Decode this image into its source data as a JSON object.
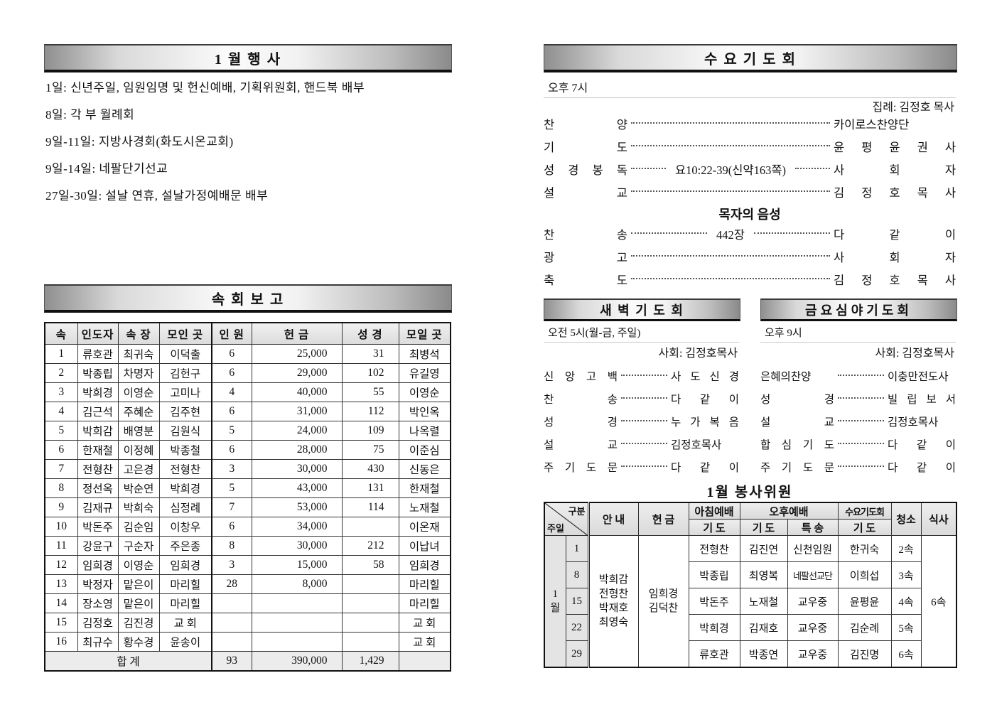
{
  "left": {
    "events": {
      "title": "1 월 행 사",
      "items": [
        "1일: 신년주일, 임원임명 및 헌신예배, 기획위원회, 핸드북 배부",
        "8일: 각 부 월례회",
        "9일-11일: 지방사경회(화도시온교회)",
        "9일-14일: 네팔단기선교",
        "27일-30일: 설날 연휴, 설날가정예배문 배부"
      ]
    },
    "sokhoe": {
      "title": "속 회 보 고",
      "headers": [
        "속",
        "인도자",
        "속 장",
        "모인 곳",
        "인 원",
        "헌 금",
        "성 경",
        "모일 곳"
      ],
      "rows": [
        [
          "1",
          "류호관",
          "최귀숙",
          "이덕출",
          "6",
          "25,000",
          "31",
          "최병석"
        ],
        [
          "2",
          "박종립",
          "차명자",
          "김헌구",
          "6",
          "29,000",
          "102",
          "유길영"
        ],
        [
          "3",
          "박희경",
          "이영순",
          "고미나",
          "4",
          "40,000",
          "55",
          "이영순"
        ],
        [
          "4",
          "김근석",
          "주혜순",
          "김주현",
          "6",
          "31,000",
          "112",
          "박인옥"
        ],
        [
          "5",
          "박희감",
          "배영분",
          "김원식",
          "5",
          "24,000",
          "109",
          "나옥렬"
        ],
        [
          "6",
          "한재철",
          "이정혜",
          "박종철",
          "6",
          "28,000",
          "75",
          "이준심"
        ],
        [
          "7",
          "전형찬",
          "고은경",
          "전형찬",
          "3",
          "30,000",
          "430",
          "신동은"
        ],
        [
          "8",
          "정선옥",
          "박순연",
          "박희경",
          "5",
          "43,000",
          "131",
          "한재철"
        ],
        [
          "9",
          "김재규",
          "박희숙",
          "심정례",
          "7",
          "53,000",
          "114",
          "노재철"
        ],
        [
          "10",
          "박돈주",
          "김순임",
          "이창우",
          "6",
          "34,000",
          "",
          "이온재"
        ],
        [
          "11",
          "강윤구",
          "구순자",
          "주은종",
          "8",
          "30,000",
          "212",
          "이납녀"
        ],
        [
          "12",
          "임희경",
          "이영순",
          "임희경",
          "3",
          "15,000",
          "58",
          "임희경"
        ],
        [
          "13",
          "박정자",
          "맡은이",
          "마리힐",
          "28",
          "8,000",
          "",
          "마리힐"
        ],
        [
          "14",
          "장소영",
          "맡은이",
          "마리힐",
          "",
          "",
          "",
          "마리힐"
        ],
        [
          "15",
          "김정호",
          "김진경",
          "교  회",
          "",
          "",
          "",
          "교  회"
        ],
        [
          "16",
          "최규수",
          "황수경",
          "윤송이",
          "",
          "",
          "",
          "교  회"
        ]
      ],
      "total": {
        "label": "합    계",
        "members": "93",
        "offering": "390,000",
        "bible": "1,429",
        "place": ""
      }
    }
  },
  "right": {
    "wednesday": {
      "title": "수 요 기 도 회",
      "time": "오후 7시",
      "officiant": "집례: 김정호 목사",
      "rows": [
        {
          "label": "찬 양",
          "value": "카이로스찬양단"
        },
        {
          "label": "기 도",
          "value": "윤 평 윤 권 사"
        },
        {
          "label": "성 경 봉 독",
          "middle": "요10:22-39(신약163쪽)",
          "value": "사 회 자"
        },
        {
          "label": "설 교",
          "value": "김 정 호 목 사"
        }
      ],
      "subtitle": "목자의 음성",
      "rows2": [
        {
          "label": "찬 송",
          "middle": "442장",
          "value": "다 같 이"
        },
        {
          "label": "광 고",
          "value": "사 회 자"
        },
        {
          "label": "축 도",
          "value": "김 정 호 목 사"
        }
      ]
    },
    "dawn": {
      "title": "새 벽 기 도 회",
      "time": "오전 5시(월-금, 주일)",
      "moderator": "사회: 김정호목사",
      "rows": [
        {
          "label": "신 앙 고 백",
          "value": "사 도 신 경"
        },
        {
          "label": "찬 송",
          "value": "다 같 이"
        },
        {
          "label": "성 경",
          "value": "누 가 복 음"
        },
        {
          "label": "설 교",
          "value": "김정호목사"
        },
        {
          "label": "주 기 도 문",
          "value": "다 같 이"
        }
      ]
    },
    "friday": {
      "title": "금요심야기도회",
      "time": "오후 9시",
      "moderator": "사회: 김정호목사",
      "rows": [
        {
          "label": "은혜의찬양",
          "value": "이충만전도사"
        },
        {
          "label": "성 경",
          "value": "빌 립 보 서"
        },
        {
          "label": "설 교",
          "value": "김정호목사"
        },
        {
          "label": "합 심 기 도",
          "value": "다 같 이"
        },
        {
          "label": "주 기 도 문",
          "value": "다 같 이"
        }
      ]
    },
    "volunteers": {
      "title": "1월 봉사위원",
      "corner": {
        "top": "구분",
        "bottom": "주일"
      },
      "headers": {
        "anae": "안 내",
        "heongeum": "헌 금",
        "morning": "아침예배",
        "afternoon": "오후예배",
        "wednesday": "수요기도회",
        "prayer": "기 도",
        "special": "특 송",
        "cleaning": "청소",
        "meal": "식사"
      },
      "month": "1\n월",
      "anae": "박희감\n전형찬\n박재호\n최영숙",
      "heongeum": "임희경\n김덕찬",
      "meal": "6속",
      "rows": [
        [
          "1",
          "전형찬",
          "김진연",
          "신천임원",
          "한귀숙",
          "2속"
        ],
        [
          "8",
          "박종립",
          "최영복",
          "네팔선교단",
          "이희섭",
          "3속"
        ],
        [
          "15",
          "박돈주",
          "노재철",
          "교우중",
          "윤평윤",
          "4속"
        ],
        [
          "22",
          "박희경",
          "김재호",
          "교우중",
          "김순례",
          "5속"
        ],
        [
          "29",
          "류호관",
          "박종연",
          "교우중",
          "김진명",
          "6속"
        ]
      ]
    }
  }
}
